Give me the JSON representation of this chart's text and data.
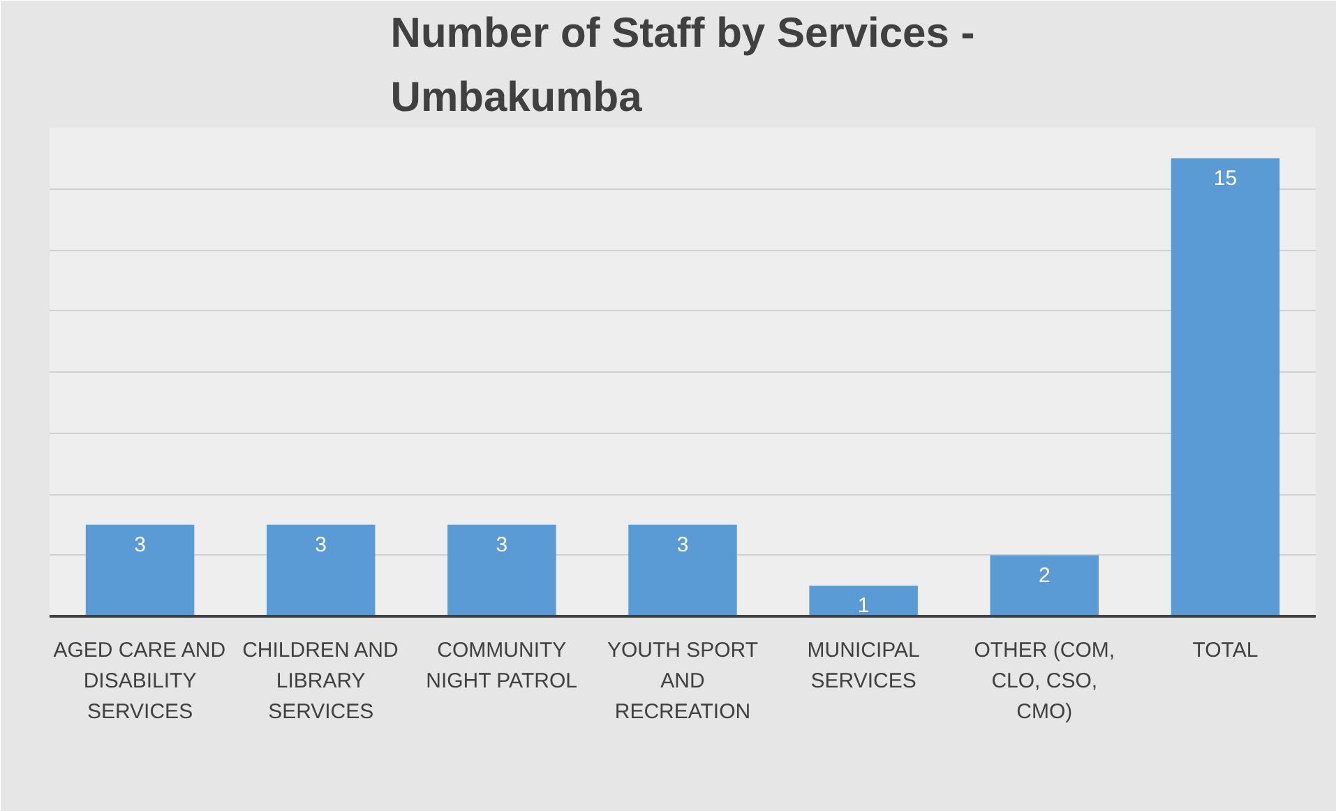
{
  "chart_data": {
    "type": "bar",
    "title": "Number of Staff by Services - Umbakumba",
    "categories": [
      "AGED CARE AND DISABILITY SERVICES",
      "CHILDREN AND LIBRARY SERVICES",
      "COMMUNITY NIGHT PATROL",
      "YOUTH SPORT AND RECREATION",
      "MUNICIPAL SERVICES",
      "OTHER (COM, CLO, CSO, CMO)",
      "TOTAL"
    ],
    "values": [
      3,
      3,
      3,
      3,
      1,
      2,
      15
    ],
    "color": "#5b9bd5",
    "ylim": [
      0,
      16
    ],
    "yticks": [
      {
        "value": 0,
        "label": null
      },
      {
        "value": 2,
        "label": null
      },
      {
        "value": 4,
        "label": null
      },
      {
        "value": 6,
        "label": null
      },
      {
        "value": 8,
        "label": null
      },
      {
        "value": 10,
        "label": null
      },
      {
        "value": 12,
        "label": null
      },
      {
        "value": 14,
        "label": null
      },
      {
        "value": 16,
        "label": null
      }
    ],
    "grid": "y",
    "data_labels": true,
    "tick_labels": "x"
  }
}
